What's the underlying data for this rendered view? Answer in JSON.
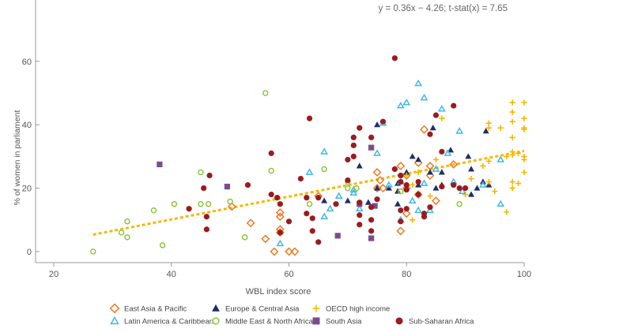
{
  "chart_data": {
    "type": "scatter",
    "title": "",
    "xlabel": "WBL index score",
    "ylabel": "% of women in parliament",
    "xlim": [
      20,
      100
    ],
    "ylim": [
      0,
      65
    ],
    "xticks": [
      20,
      40,
      60,
      80,
      100
    ],
    "yticks": [
      0,
      20,
      40,
      60
    ],
    "grid": false,
    "legend_position": "bottom",
    "annotation": "y = 0.36x − 4.26; t-stat(x) = 7.65",
    "trendline": {
      "slope": 0.36,
      "intercept": -4.26,
      "x_range": [
        26.7,
        100
      ],
      "color": "#f5b800"
    },
    "series": [
      {
        "name": "East Asia & Pacific",
        "marker": "diamond-open",
        "color": "#f07a22",
        "points": [
          [
            50.3,
            14.2
          ],
          [
            53.5,
            9
          ],
          [
            56,
            4
          ],
          [
            57.5,
            0
          ],
          [
            58.5,
            12.3
          ],
          [
            58.5,
            11
          ],
          [
            58.5,
            7
          ],
          [
            58.5,
            6
          ],
          [
            60,
            0
          ],
          [
            61,
            0
          ],
          [
            65,
            17.5
          ],
          [
            75,
            20
          ],
          [
            75.5,
            22.5
          ],
          [
            75,
            25
          ],
          [
            79,
            27
          ],
          [
            79,
            6.5
          ],
          [
            80,
            12
          ],
          [
            80,
            20
          ],
          [
            82,
            28
          ],
          [
            83,
            38.5
          ],
          [
            84,
            27
          ],
          [
            84,
            24
          ],
          [
            85,
            16
          ],
          [
            88,
            27.5
          ],
          [
            76,
            20
          ],
          [
            80,
            24
          ],
          [
            82,
            18
          ]
        ]
      },
      {
        "name": "Europe & Central Asia",
        "marker": "triangle-filled",
        "color": "#1f2f66",
        "points": [
          [
            66,
            16
          ],
          [
            70,
            16
          ],
          [
            72,
            27
          ],
          [
            73.5,
            15.5
          ],
          [
            75,
            40
          ],
          [
            78.5,
            21.5
          ],
          [
            78.5,
            19
          ],
          [
            78.5,
            15
          ],
          [
            80,
            25
          ],
          [
            81,
            30
          ],
          [
            82,
            29
          ],
          [
            82,
            21
          ],
          [
            84,
            25
          ],
          [
            84.5,
            39
          ],
          [
            85,
            20
          ],
          [
            86,
            21
          ],
          [
            86,
            25
          ],
          [
            87.5,
            32
          ],
          [
            90.5,
            30
          ],
          [
            91,
            26
          ],
          [
            92,
            20
          ],
          [
            93,
            22
          ],
          [
            93.5,
            38
          ],
          [
            94,
            21
          ],
          [
            91,
            18
          ],
          [
            75,
            20
          ],
          [
            77,
            20
          ]
        ]
      },
      {
        "name": "OECD high income",
        "marker": "plus",
        "color": "#f5b800",
        "points": [
          [
            80,
            24
          ],
          [
            81,
            21
          ],
          [
            81,
            10
          ],
          [
            82,
            25
          ],
          [
            84,
            17.5
          ],
          [
            85,
            29
          ],
          [
            86,
            42
          ],
          [
            90,
            18
          ],
          [
            91,
            23
          ],
          [
            93,
            27
          ],
          [
            94,
            28.5
          ],
          [
            94,
            40.5
          ],
          [
            94,
            39
          ],
          [
            95,
            19
          ],
          [
            94,
            22
          ],
          [
            97,
            12.5
          ],
          [
            98,
            47
          ],
          [
            98,
            44
          ],
          [
            98,
            41
          ],
          [
            98,
            36
          ],
          [
            98,
            31.5
          ],
          [
            98,
            30.5
          ],
          [
            98,
            22
          ],
          [
            98,
            20
          ],
          [
            99,
            21.5
          ],
          [
            100,
            47
          ],
          [
            100,
            42
          ],
          [
            100,
            39
          ],
          [
            100,
            38.5
          ],
          [
            100,
            29
          ],
          [
            100,
            30
          ],
          [
            100,
            25
          ],
          [
            96,
            39
          ],
          [
            97,
            30
          ],
          [
            99,
            31
          ]
        ]
      },
      {
        "name": "Latin America & Caribbean",
        "marker": "triangle-open",
        "color": "#3fb8ea",
        "points": [
          [
            58.5,
            2.5
          ],
          [
            63.5,
            25
          ],
          [
            66,
            31.5
          ],
          [
            66,
            11
          ],
          [
            67,
            13.5
          ],
          [
            68.5,
            17.5
          ],
          [
            71,
            18.5
          ],
          [
            71,
            19.5
          ],
          [
            72,
            13.5
          ],
          [
            75,
            31
          ],
          [
            76,
            40.5
          ],
          [
            77,
            21
          ],
          [
            79,
            22
          ],
          [
            79,
            10
          ],
          [
            79,
            46
          ],
          [
            80,
            47
          ],
          [
            81,
            16
          ],
          [
            82,
            53
          ],
          [
            83,
            48.5
          ],
          [
            83,
            21.5
          ],
          [
            84,
            13
          ],
          [
            85,
            26
          ],
          [
            86,
            45
          ],
          [
            87,
            31
          ],
          [
            88,
            22
          ],
          [
            89,
            38
          ],
          [
            89.5,
            19
          ],
          [
            93,
            21
          ],
          [
            96,
            29
          ],
          [
            96,
            15
          ],
          [
            82,
            13
          ]
        ]
      },
      {
        "name": "Middle East & North Africa",
        "marker": "circle-open",
        "color": "#8cc63f",
        "points": [
          [
            26.7,
            0
          ],
          [
            31.5,
            6
          ],
          [
            32.5,
            4.5
          ],
          [
            32.5,
            9.5
          ],
          [
            37,
            13
          ],
          [
            38.5,
            2
          ],
          [
            40.5,
            15
          ],
          [
            45,
            25
          ],
          [
            45,
            15
          ],
          [
            46.3,
            15
          ],
          [
            50,
            15.8
          ],
          [
            52.5,
            4.5
          ],
          [
            56,
            50
          ],
          [
            57,
            25.5
          ],
          [
            63.5,
            15
          ],
          [
            66,
            26
          ],
          [
            70,
            22
          ],
          [
            70,
            20
          ],
          [
            71.5,
            20
          ],
          [
            79,
            19
          ],
          [
            89,
            15
          ]
        ]
      },
      {
        "name": "South Asia",
        "marker": "square-filled",
        "color": "#7d4a8f",
        "points": [
          [
            38,
            27.5
          ],
          [
            49.5,
            20.5
          ],
          [
            68.3,
            5
          ],
          [
            72,
            15
          ],
          [
            74.6,
            14.4
          ],
          [
            74,
            32.8
          ],
          [
            74,
            4.2
          ]
        ]
      },
      {
        "name": "Sub-Saharan Africa",
        "marker": "circle-filled",
        "color": "#9b1b1e",
        "points": [
          [
            43,
            13.5
          ],
          [
            45.5,
            20
          ],
          [
            46,
            7
          ],
          [
            46,
            11
          ],
          [
            46.5,
            24
          ],
          [
            53,
            21
          ],
          [
            57,
            31
          ],
          [
            57,
            18
          ],
          [
            58,
            17
          ],
          [
            58.5,
            6
          ],
          [
            58.5,
            15
          ],
          [
            60,
            9.5
          ],
          [
            62,
            23
          ],
          [
            63,
            17
          ],
          [
            63,
            12
          ],
          [
            63.5,
            42
          ],
          [
            64,
            10.5
          ],
          [
            64,
            6.5
          ],
          [
            65,
            17
          ],
          [
            65,
            3
          ],
          [
            68,
            15
          ],
          [
            70,
            22.5
          ],
          [
            70,
            29
          ],
          [
            71,
            33.5
          ],
          [
            71,
            36
          ],
          [
            71,
            30
          ],
          [
            72,
            15.5
          ],
          [
            72,
            11.5
          ],
          [
            72,
            8.5
          ],
          [
            72,
            39
          ],
          [
            74,
            14
          ],
          [
            74,
            10
          ],
          [
            74,
            6.5
          ],
          [
            74,
            36
          ],
          [
            75,
            16.5
          ],
          [
            76,
            41
          ],
          [
            78,
            61
          ],
          [
            78,
            26
          ],
          [
            79,
            22
          ],
          [
            79,
            13
          ],
          [
            79,
            24
          ],
          [
            79,
            9.5
          ],
          [
            80,
            19.5
          ],
          [
            80,
            21
          ],
          [
            82,
            18
          ],
          [
            82,
            22
          ],
          [
            83,
            12
          ],
          [
            83,
            11
          ],
          [
            84,
            14
          ],
          [
            84,
            37
          ],
          [
            85,
            43
          ],
          [
            86,
            31.5
          ],
          [
            86,
            20.5
          ],
          [
            88,
            46
          ],
          [
            88,
            21
          ],
          [
            90,
            20
          ],
          [
            80,
            13.5
          ],
          [
            89,
            20
          ]
        ]
      }
    ]
  }
}
